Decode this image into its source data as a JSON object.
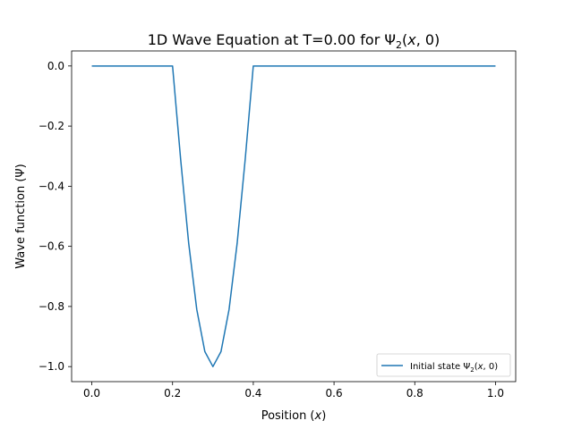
{
  "chart_data": {
    "type": "line",
    "title": {
      "prefix": "1D Wave Equation at T=0.00 for ",
      "psi": "Ψ",
      "sub": "2",
      "open": "(",
      "var": "x",
      "rest": ", 0)"
    },
    "xlabel": {
      "text": "Position (",
      "var": "x",
      "close": ")"
    },
    "ylabel": "Wave function (Ψ)",
    "xlim": [
      -0.05,
      1.05
    ],
    "ylim": [
      -1.05,
      0.05
    ],
    "xticks": [
      0.0,
      0.2,
      0.4,
      0.6,
      0.8,
      1.0
    ],
    "xtick_labels": [
      "0.0",
      "0.2",
      "0.4",
      "0.6",
      "0.8",
      "1.0"
    ],
    "yticks": [
      0.0,
      -0.2,
      -0.4,
      -0.6,
      -0.8,
      -1.0
    ],
    "ytick_labels": [
      "0.0",
      "−0.2",
      "−0.4",
      "−0.6",
      "−0.8",
      "−1.0"
    ],
    "grid": false,
    "legend_position": "lower-right",
    "series": [
      {
        "name": "Initial state Ψ2(x, 0)",
        "legend": {
          "prefix": "Initial state ",
          "psi": "Ψ",
          "sub": "2",
          "open": "(",
          "var": "x",
          "rest": ", 0)"
        },
        "color": "#1f77b4",
        "x": [
          0.0,
          0.2,
          0.22,
          0.24,
          0.26,
          0.28,
          0.3,
          0.32,
          0.34,
          0.36,
          0.38,
          0.4,
          1.0
        ],
        "y": [
          0.0,
          0.0,
          -0.31,
          -0.59,
          -0.81,
          -0.95,
          -1.0,
          -0.95,
          -0.81,
          -0.59,
          -0.31,
          0.0,
          0.0
        ]
      }
    ]
  }
}
